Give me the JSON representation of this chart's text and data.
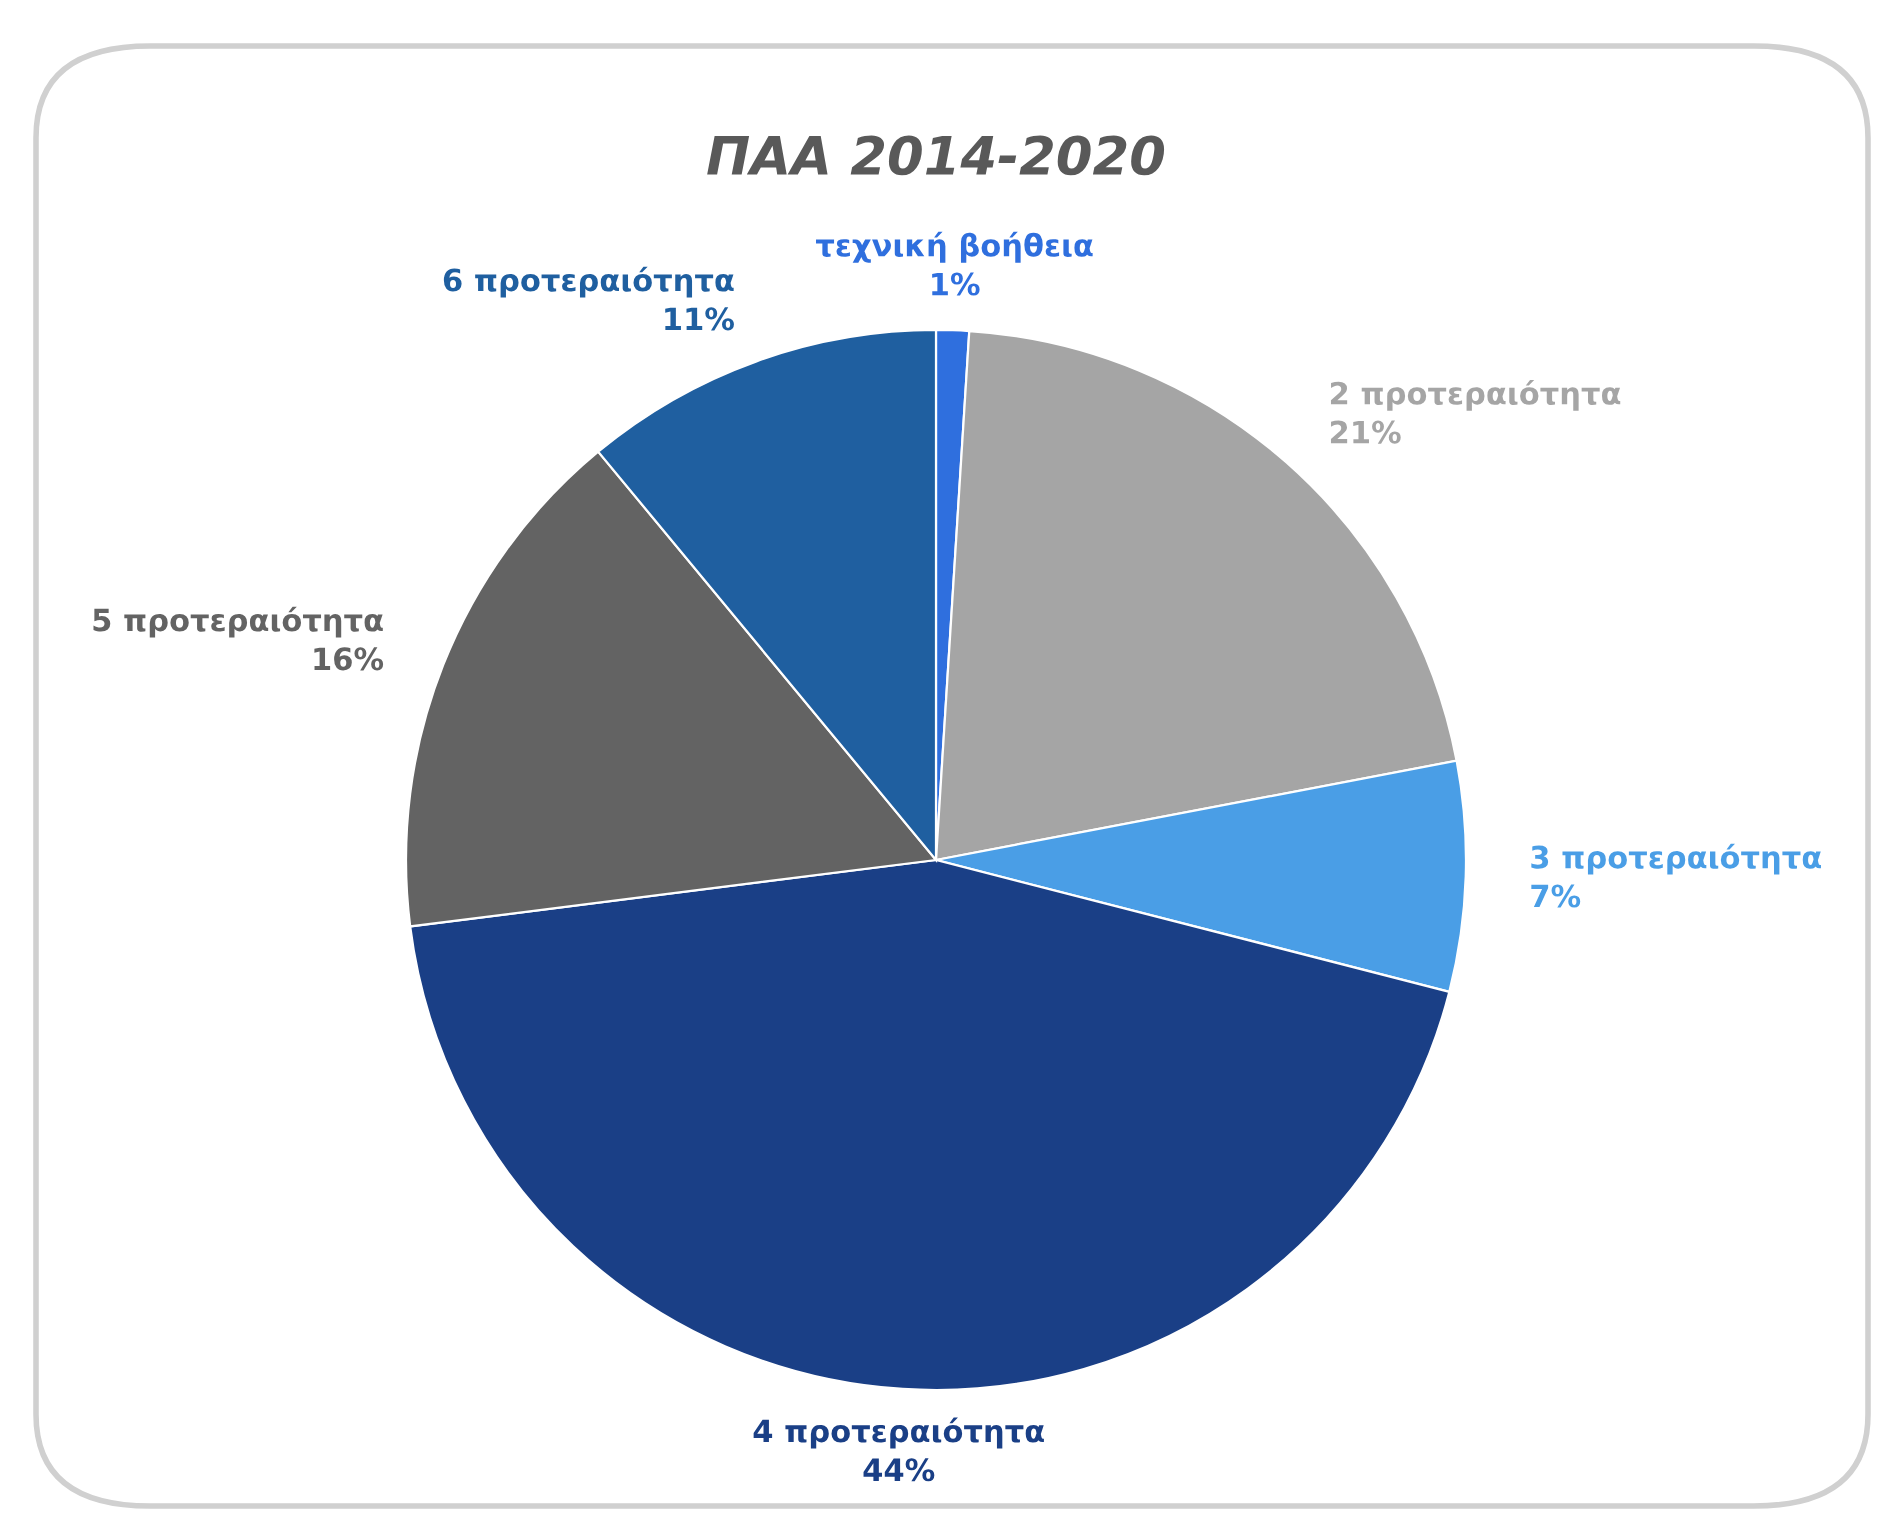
{
  "chart_data": {
    "type": "pie",
    "title": "ΠΑΑ 2014-2020",
    "categories": [
      "τεχνική βοήθεια",
      "2 προτεραιότητα",
      "3 προτεραιότητα",
      "4 προτεραιότητα",
      "5 προτεραιότητα",
      "6 προτεραιότητα"
    ],
    "values": [
      1,
      21,
      7,
      44,
      16,
      11
    ],
    "colors": [
      "#2f6fde",
      "#a5a5a5",
      "#4a9ee6",
      "#1a3f86",
      "#636363",
      "#1f5fa0"
    ],
    "value_labels": [
      "1%",
      "21%",
      "7%",
      "44%",
      "16%",
      "11%"
    ],
    "legend": false
  }
}
